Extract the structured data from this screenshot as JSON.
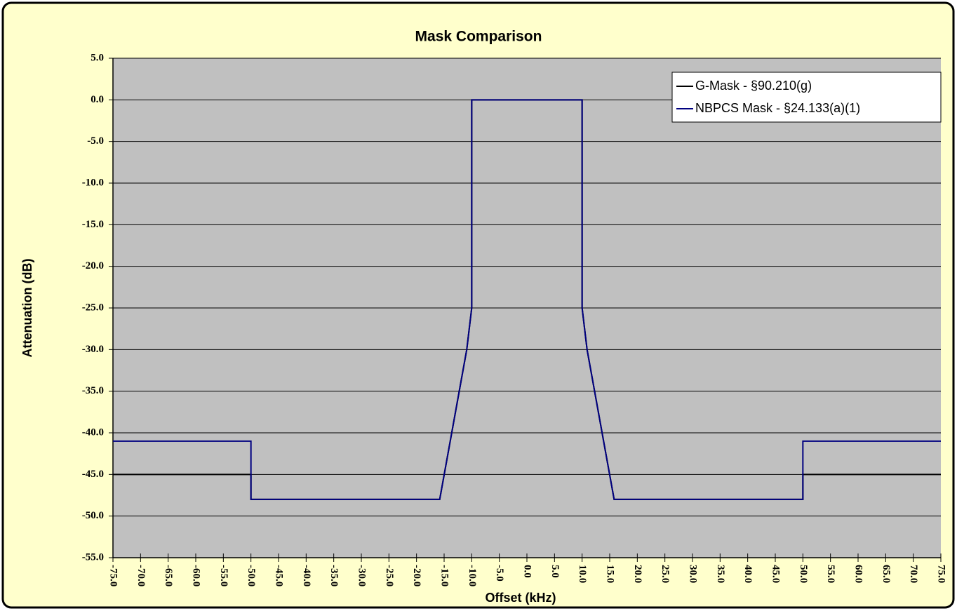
{
  "chart_data": {
    "type": "line",
    "title": "Mask Comparison",
    "x_label": "Offset (kHz)",
    "y_label": "Attenuation (dB)",
    "series": [
      {
        "name": "G-Mask - §90.210(g)",
        "color": "#000000",
        "x": [
          -75,
          -50,
          -50,
          -15.8,
          -10.9,
          -10,
          -10,
          10,
          10,
          10.9,
          15.8,
          50,
          50,
          75
        ],
        "values": [
          -45,
          -45,
          -48,
          -48,
          -30,
          -25,
          0,
          0,
          -25,
          -30,
          -48,
          -48,
          -45,
          -45
        ]
      },
      {
        "name": "NBPCS Mask - §24.133(a)(1)",
        "color": "#000080",
        "x": [
          -75,
          -50,
          -50,
          -15.8,
          -10.9,
          -10,
          -10,
          10,
          10,
          10.9,
          15.8,
          50,
          50,
          75
        ],
        "values": [
          -41,
          -41,
          -48,
          -48,
          -30,
          -25,
          0,
          0,
          -25,
          -30,
          -48,
          -48,
          -41,
          -41
        ]
      }
    ],
    "xlim": [
      -75,
      75
    ],
    "xticks": [
      {
        "value": -75,
        "label": "-75.0"
      },
      {
        "value": -70,
        "label": "-70.0"
      },
      {
        "value": -65,
        "label": "-65.0"
      },
      {
        "value": -60,
        "label": "-60.0"
      },
      {
        "value": -55,
        "label": "-55.0"
      },
      {
        "value": -50,
        "label": "-50.0"
      },
      {
        "value": -45,
        "label": "-45.0"
      },
      {
        "value": -40,
        "label": "-40.0"
      },
      {
        "value": -35,
        "label": "-35.0"
      },
      {
        "value": -30,
        "label": "-30.0"
      },
      {
        "value": -25,
        "label": "-25.0"
      },
      {
        "value": -20,
        "label": "-20.0"
      },
      {
        "value": -15,
        "label": "-15.0"
      },
      {
        "value": -10,
        "label": "-10.0"
      },
      {
        "value": -5,
        "label": "-5.0"
      },
      {
        "value": 0,
        "label": "0.0"
      },
      {
        "value": 5,
        "label": "5.0"
      },
      {
        "value": 10,
        "label": "10.0"
      },
      {
        "value": 15,
        "label": "15.0"
      },
      {
        "value": 20,
        "label": "20.0"
      },
      {
        "value": 25,
        "label": "25.0"
      },
      {
        "value": 30,
        "label": "30.0"
      },
      {
        "value": 35,
        "label": "35.0"
      },
      {
        "value": 40,
        "label": "40.0"
      },
      {
        "value": 45,
        "label": "45.0"
      },
      {
        "value": 50,
        "label": "50.0"
      },
      {
        "value": 55,
        "label": "55.0"
      },
      {
        "value": 60,
        "label": "60.0"
      },
      {
        "value": 65,
        "label": "65.0"
      },
      {
        "value": 70,
        "label": "70.0"
      },
      {
        "value": 75,
        "label": "75.0"
      }
    ],
    "ylim": [
      -55,
      5
    ],
    "yticks": [
      {
        "value": 5,
        "label": "5.0"
      },
      {
        "value": 0,
        "label": "0.0"
      },
      {
        "value": -5,
        "label": "-5.0"
      },
      {
        "value": -10,
        "label": "-10.0"
      },
      {
        "value": -15,
        "label": "-15.0"
      },
      {
        "value": -20,
        "label": "-20.0"
      },
      {
        "value": -25,
        "label": "-25.0"
      },
      {
        "value": -30,
        "label": "-30.0"
      },
      {
        "value": -35,
        "label": "-35.0"
      },
      {
        "value": -40,
        "label": "-40.0"
      },
      {
        "value": -45,
        "label": "-45.0"
      },
      {
        "value": -50,
        "label": "-50.0"
      },
      {
        "value": -55,
        "label": "-55.0"
      }
    ],
    "grid": true,
    "legend": "top-right"
  }
}
